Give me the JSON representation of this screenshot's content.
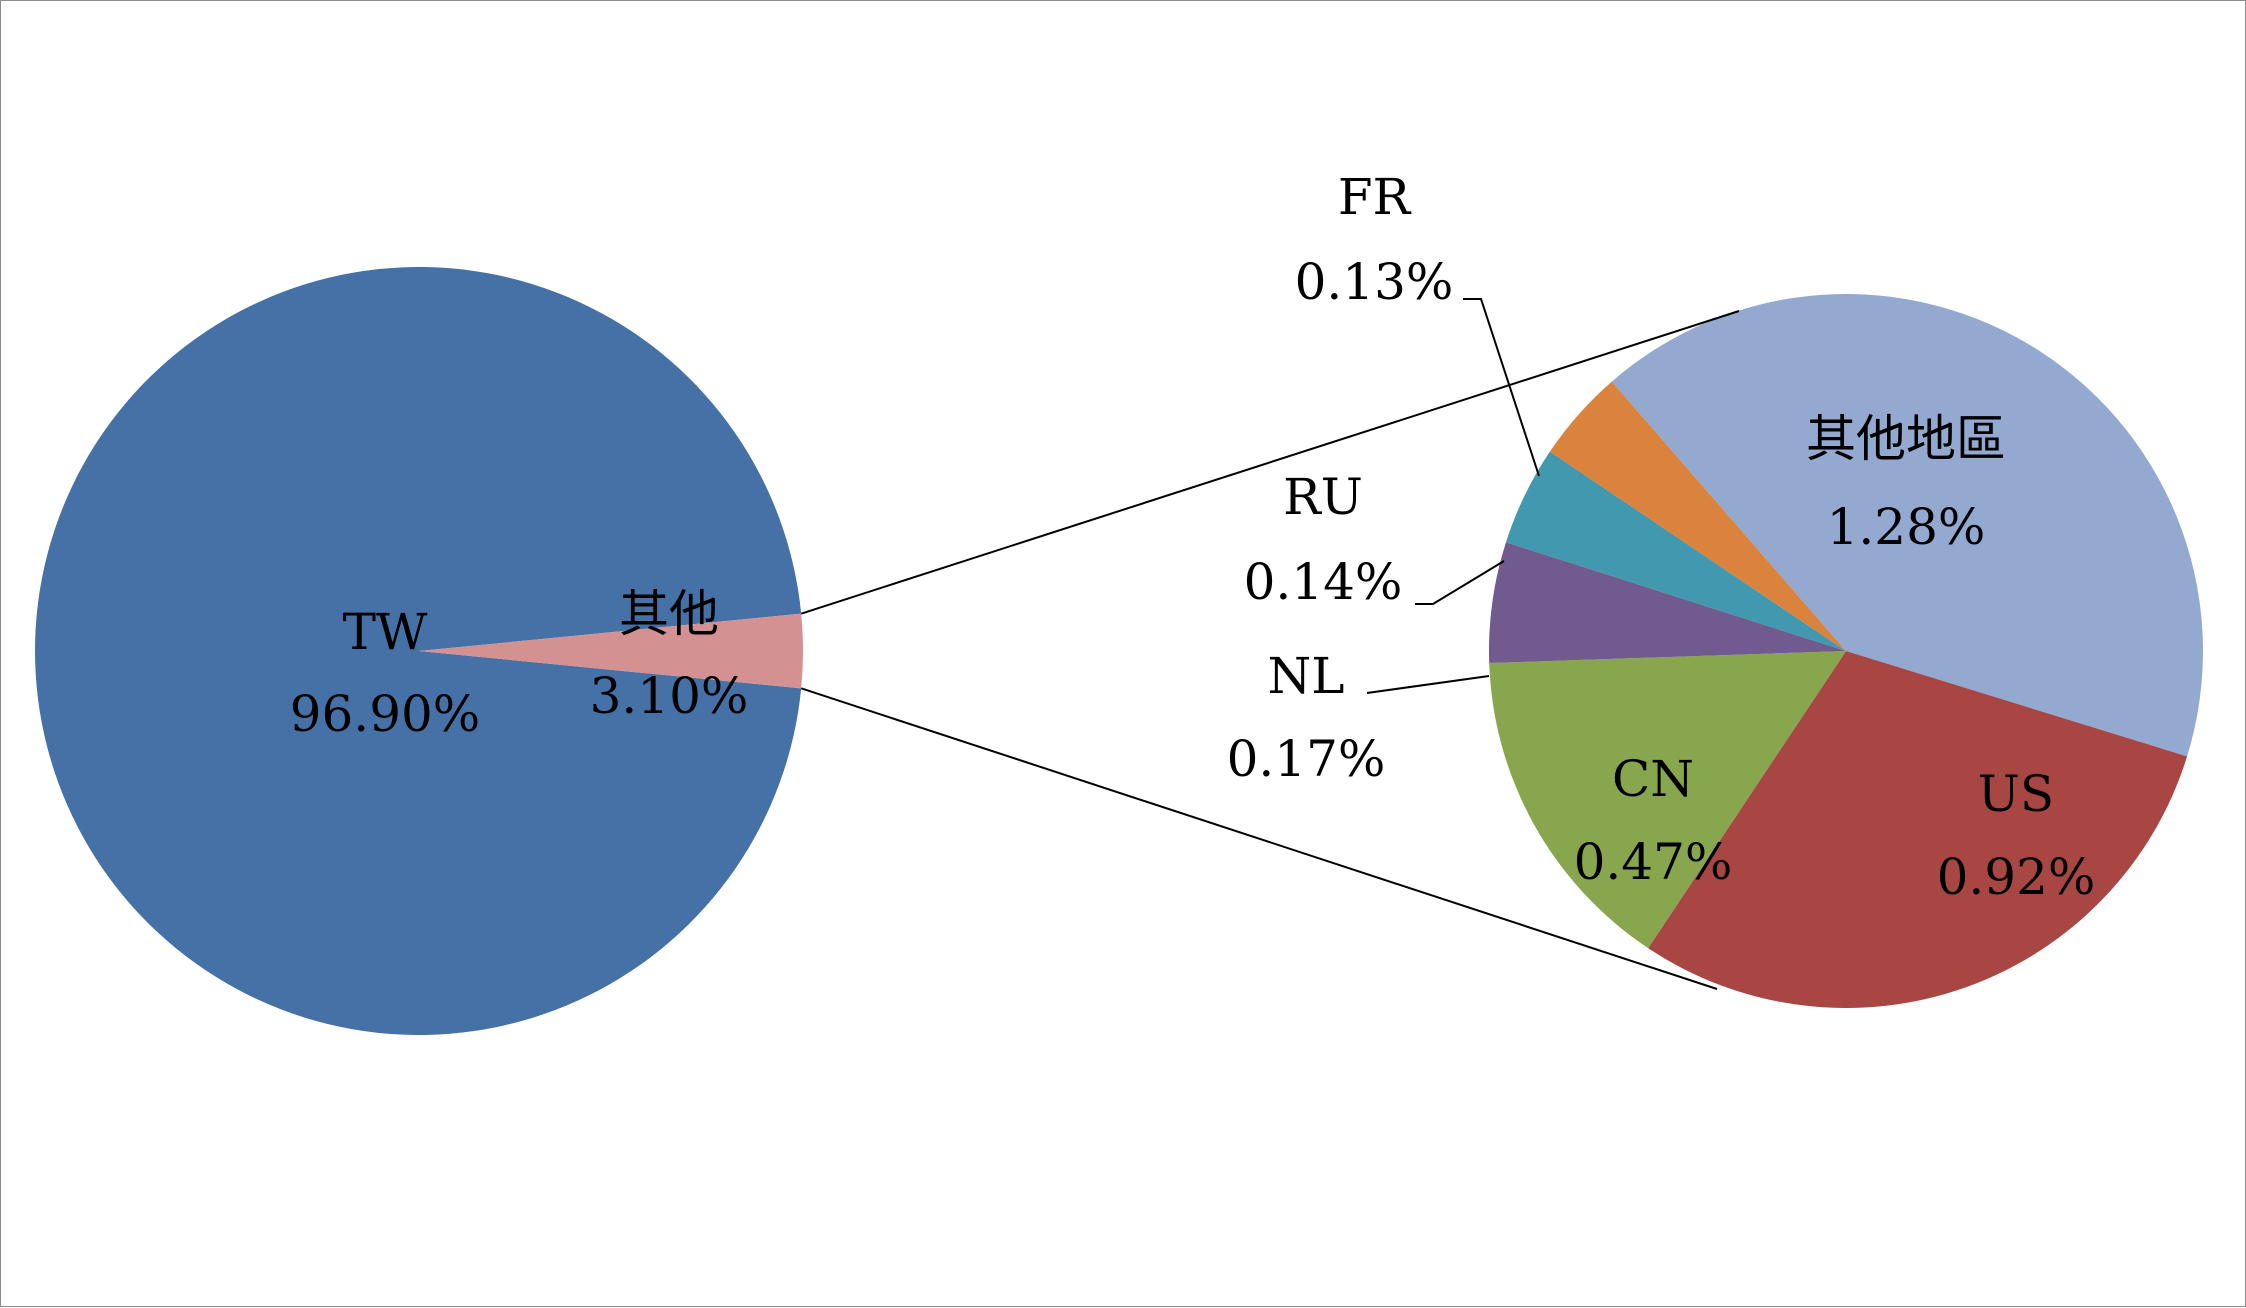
{
  "chart_data": {
    "type": "pie",
    "variant": "pie-of-pie",
    "main_pie": {
      "slices": [
        {
          "label": "TW",
          "value": 96.9,
          "value_text": "96.90%",
          "color": "#4571A6"
        },
        {
          "label": "其他",
          "value": 3.1,
          "value_text": "3.10%",
          "color": "#D39291"
        }
      ]
    },
    "secondary_pie": {
      "source_slice": "其他",
      "slices": [
        {
          "label": "其他地區",
          "value": 1.28,
          "value_text": "1.28%",
          "color": "#93A9D0"
        },
        {
          "label": "US",
          "value": 0.92,
          "value_text": "0.92%",
          "color": "#A84644"
        },
        {
          "label": "CN",
          "value": 0.47,
          "value_text": "0.47%",
          "color": "#88A64D"
        },
        {
          "label": "NL",
          "value": 0.17,
          "value_text": "0.17%",
          "color": "#715A8E"
        },
        {
          "label": "RU",
          "value": 0.14,
          "value_text": "0.14%",
          "color": "#4198AF"
        },
        {
          "label": "FR",
          "value": 0.13,
          "value_text": "0.13%",
          "color": "#DA833D"
        }
      ]
    },
    "legend": "none",
    "border_color": "#8C8C8C"
  }
}
